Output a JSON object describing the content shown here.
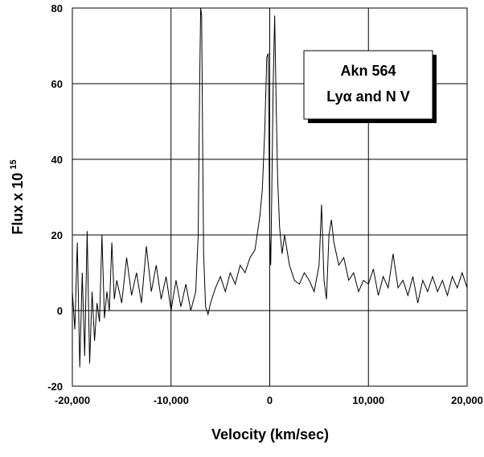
{
  "chart_data": {
    "type": "line",
    "annotation_lines": [
      "Akn 564",
      "Lyα and N V"
    ],
    "x_label": "Velocity (km/sec)",
    "y_label": "Flux x 10",
    "y_label_exponent": "15",
    "xlim": [
      -20000,
      20000
    ],
    "ylim": [
      -20,
      80
    ],
    "xticks": [
      {
        "value": -20000,
        "label": "-20,000"
      },
      {
        "value": -10000,
        "label": "-10,000"
      },
      {
        "value": 0,
        "label": "0"
      },
      {
        "value": 10000,
        "label": "10,000"
      },
      {
        "value": 20000,
        "label": "20,000"
      }
    ],
    "yticks": [
      -20,
      0,
      20,
      40,
      60,
      80
    ],
    "grid": true,
    "x": [
      -20000,
      -19750,
      -19500,
      -19250,
      -19000,
      -18750,
      -18500,
      -18250,
      -18000,
      -17750,
      -17500,
      -17250,
      -17000,
      -16750,
      -16500,
      -16250,
      -16000,
      -15750,
      -15500,
      -15000,
      -14500,
      -14000,
      -13500,
      -13000,
      -12500,
      -12000,
      -11500,
      -11000,
      -10500,
      -10000,
      -9500,
      -9000,
      -8500,
      -8000,
      -7500,
      -7250,
      -7100,
      -7000,
      -6900,
      -6800,
      -6700,
      -6500,
      -6250,
      -6000,
      -5500,
      -5000,
      -4500,
      -4000,
      -3500,
      -3000,
      -2500,
      -2000,
      -1500,
      -1000,
      -750,
      -500,
      -300,
      -150,
      0,
      100,
      200,
      350,
      500,
      650,
      800,
      1000,
      1250,
      1500,
      2000,
      2500,
      3000,
      3500,
      4000,
      4500,
      5000,
      5250,
      5500,
      5750,
      6000,
      6250,
      6500,
      7000,
      7500,
      8000,
      8500,
      9000,
      9500,
      10000,
      10500,
      11000,
      11500,
      12000,
      12500,
      13000,
      13500,
      14000,
      14500,
      15000,
      15500,
      16000,
      16500,
      17000,
      17500,
      18000,
      18500,
      19000,
      19500,
      20000
    ],
    "series": [
      {
        "color": "#000000",
        "values": [
          5,
          -5,
          18,
          -15,
          10,
          -12,
          21,
          -14,
          5,
          -8,
          2,
          -3,
          20,
          -2,
          5,
          0,
          18,
          3,
          8,
          2,
          14,
          4,
          10,
          2,
          17,
          5,
          12,
          3,
          9,
          0,
          8,
          1,
          7,
          0,
          5,
          20,
          60,
          80,
          78,
          45,
          15,
          1,
          -1,
          2,
          6,
          9,
          5,
          10,
          7,
          12,
          10,
          14,
          16,
          25,
          32,
          48,
          67,
          68,
          20,
          12,
          30,
          60,
          78,
          55,
          35,
          22,
          15,
          20,
          12,
          8,
          7,
          10,
          8,
          5,
          12,
          28,
          8,
          3,
          20,
          24,
          18,
          12,
          14,
          8,
          10,
          5,
          8,
          7,
          11,
          4,
          9,
          6,
          15,
          6,
          8,
          4,
          9,
          2,
          8,
          5,
          9,
          5,
          8,
          4,
          9,
          6,
          10,
          6
        ]
      }
    ]
  }
}
